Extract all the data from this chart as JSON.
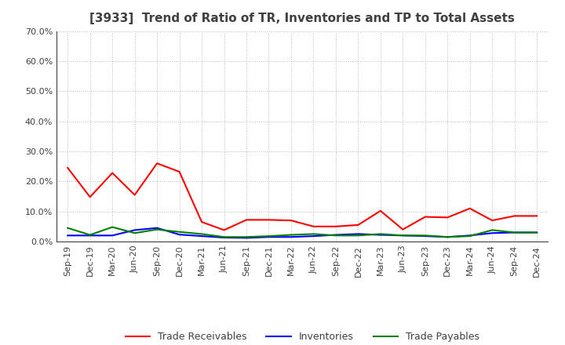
{
  "title": "[3933]  Trend of Ratio of TR, Inventories and TP to Total Assets",
  "x_labels": [
    "Sep-19",
    "Dec-19",
    "Mar-20",
    "Jun-20",
    "Sep-20",
    "Dec-20",
    "Mar-21",
    "Jun-21",
    "Sep-21",
    "Dec-21",
    "Mar-22",
    "Jun-22",
    "Sep-22",
    "Dec-22",
    "Mar-23",
    "Jun-23",
    "Sep-23",
    "Dec-23",
    "Mar-24",
    "Jun-24",
    "Sep-24",
    "Dec-24"
  ],
  "trade_receivables": [
    0.245,
    0.148,
    0.228,
    0.155,
    0.26,
    0.232,
    0.065,
    0.038,
    0.072,
    0.072,
    0.07,
    0.05,
    0.05,
    0.055,
    0.102,
    0.04,
    0.082,
    0.08,
    0.11,
    0.07,
    0.085,
    0.085
  ],
  "inventories": [
    0.02,
    0.02,
    0.02,
    0.038,
    0.045,
    0.023,
    0.018,
    0.013,
    0.012,
    0.015,
    0.015,
    0.018,
    0.022,
    0.025,
    0.022,
    0.02,
    0.018,
    0.015,
    0.02,
    0.028,
    0.03,
    0.03
  ],
  "trade_payables": [
    0.045,
    0.022,
    0.048,
    0.028,
    0.04,
    0.032,
    0.025,
    0.015,
    0.015,
    0.018,
    0.022,
    0.025,
    0.02,
    0.02,
    0.025,
    0.02,
    0.02,
    0.015,
    0.018,
    0.038,
    0.03,
    0.03
  ],
  "tr_color": "#FF0000",
  "inv_color": "#0000FF",
  "tp_color": "#008000",
  "ylim": [
    0.0,
    0.7
  ],
  "yticks": [
    0.0,
    0.1,
    0.2,
    0.3,
    0.4,
    0.5,
    0.6,
    0.7
  ],
  "legend_labels": [
    "Trade Receivables",
    "Inventories",
    "Trade Payables"
  ],
  "bg_color": "#FFFFFF",
  "grid_color": "#AAAAAA",
  "title_color": "#404040",
  "title_fontsize": 11,
  "tick_fontsize": 8,
  "legend_fontsize": 9
}
